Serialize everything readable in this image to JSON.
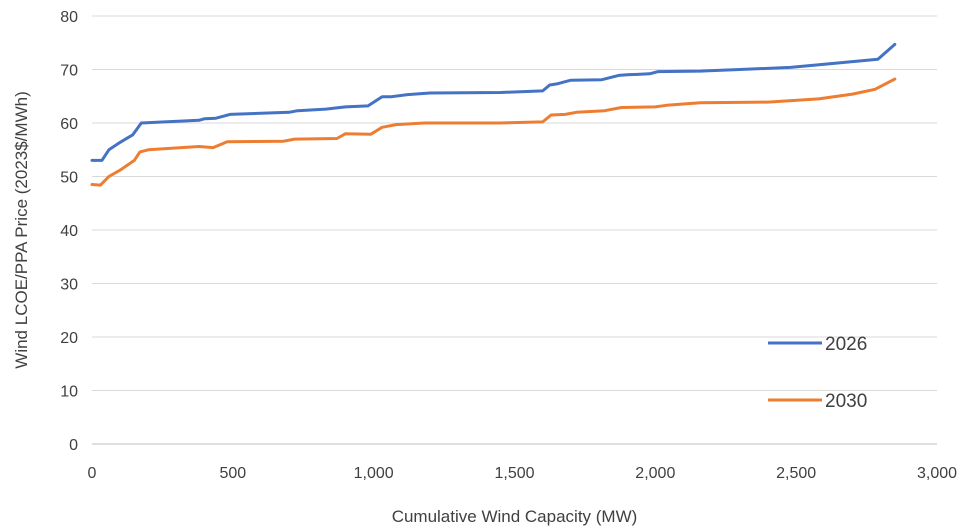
{
  "chart_data": {
    "type": "line",
    "title": "",
    "xlabel": "Cumulative Wind Capacity (MW)",
    "ylabel": "Wind LCOE/PPA Price (2023$/MWh)",
    "xlim": [
      0,
      3000
    ],
    "ylim": [
      0,
      80
    ],
    "x_ticks": [
      0,
      500,
      1000,
      1500,
      2000,
      2500,
      3000
    ],
    "x_tick_labels": [
      "0",
      "500",
      "1,000",
      "1,500",
      "2,000",
      "2,500",
      "3,000"
    ],
    "y_ticks": [
      0,
      10,
      20,
      30,
      40,
      50,
      60,
      70,
      80
    ],
    "y_tick_labels": [
      "0",
      "10",
      "20",
      "30",
      "40",
      "50",
      "60",
      "70",
      "80"
    ],
    "grid": "horizontal",
    "legend_position": "bottom-right",
    "series": [
      {
        "name": "2026",
        "color": "#4472C4",
        "points": [
          [
            0,
            53.0
          ],
          [
            35,
            53.0
          ],
          [
            60,
            55.0
          ],
          [
            100,
            56.4
          ],
          [
            145,
            57.8
          ],
          [
            175,
            60.0
          ],
          [
            380,
            60.5
          ],
          [
            400,
            60.8
          ],
          [
            440,
            60.9
          ],
          [
            490,
            61.6
          ],
          [
            700,
            62.0
          ],
          [
            730,
            62.3
          ],
          [
            830,
            62.6
          ],
          [
            900,
            63.0
          ],
          [
            980,
            63.2
          ],
          [
            1030,
            64.9
          ],
          [
            1060,
            64.9
          ],
          [
            1120,
            65.3
          ],
          [
            1200,
            65.6
          ],
          [
            1450,
            65.7
          ],
          [
            1600,
            66.0
          ],
          [
            1625,
            67.1
          ],
          [
            1650,
            67.3
          ],
          [
            1700,
            68.0
          ],
          [
            1810,
            68.1
          ],
          [
            1870,
            68.9
          ],
          [
            1900,
            69.0
          ],
          [
            1980,
            69.2
          ],
          [
            2010,
            69.6
          ],
          [
            2160,
            69.7
          ],
          [
            2200,
            69.8
          ],
          [
            2300,
            70.0
          ],
          [
            2480,
            70.4
          ],
          [
            2600,
            71.0
          ],
          [
            2790,
            71.9
          ],
          [
            2850,
            74.7
          ]
        ]
      },
      {
        "name": "2030",
        "color": "#ED7D31",
        "points": [
          [
            0,
            48.5
          ],
          [
            30,
            48.4
          ],
          [
            60,
            50.0
          ],
          [
            100,
            51.2
          ],
          [
            150,
            53.0
          ],
          [
            170,
            54.6
          ],
          [
            200,
            55.0
          ],
          [
            380,
            55.6
          ],
          [
            430,
            55.4
          ],
          [
            480,
            56.5
          ],
          [
            680,
            56.6
          ],
          [
            720,
            57.0
          ],
          [
            870,
            57.1
          ],
          [
            900,
            58.0
          ],
          [
            990,
            57.9
          ],
          [
            1030,
            59.2
          ],
          [
            1080,
            59.7
          ],
          [
            1180,
            60.0
          ],
          [
            1450,
            60.0
          ],
          [
            1600,
            60.2
          ],
          [
            1630,
            61.5
          ],
          [
            1680,
            61.6
          ],
          [
            1720,
            62.0
          ],
          [
            1820,
            62.3
          ],
          [
            1880,
            62.9
          ],
          [
            2000,
            63.0
          ],
          [
            2040,
            63.3
          ],
          [
            2160,
            63.8
          ],
          [
            2400,
            63.9
          ],
          [
            2580,
            64.5
          ],
          [
            2700,
            65.4
          ],
          [
            2780,
            66.3
          ],
          [
            2850,
            68.2
          ]
        ]
      }
    ]
  }
}
